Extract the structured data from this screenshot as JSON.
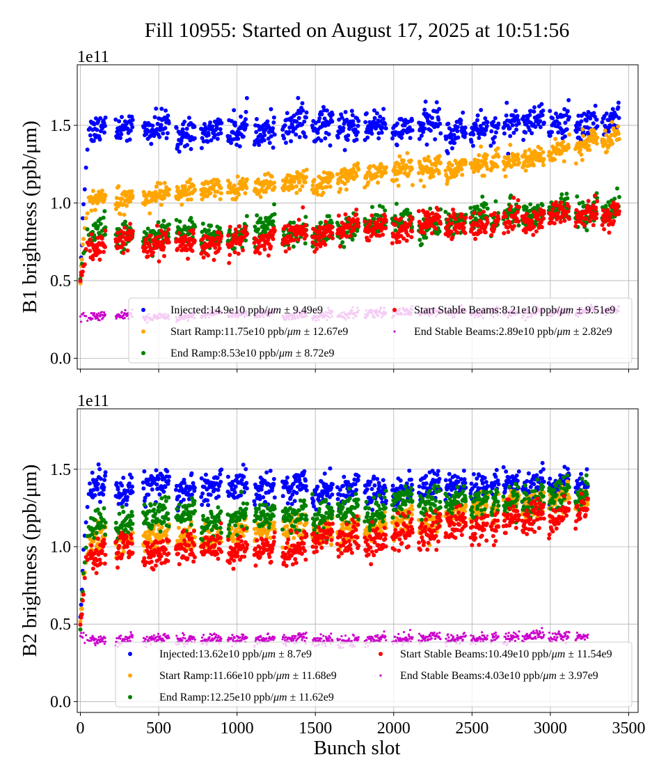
{
  "chart_data": {
    "type": "scatter",
    "title": "Fill 10955: Started on August 17, 2025 at 10:51:56",
    "xlabel": "Bunch slot",
    "xlim": [
      -20,
      3560
    ],
    "xticks": [
      0,
      500,
      1000,
      1500,
      2000,
      2500,
      3000,
      3500
    ],
    "grid": true,
    "bunch_trains": [
      [
        60,
        160
      ],
      [
        225,
        335
      ],
      [
        400,
        565
      ],
      [
        610,
        730
      ],
      [
        770,
        900
      ],
      [
        940,
        1065
      ],
      [
        1110,
        1240
      ],
      [
        1290,
        1445
      ],
      [
        1480,
        1610
      ],
      [
        1640,
        1775
      ],
      [
        1815,
        1950
      ],
      [
        1990,
        2120
      ],
      [
        2160,
        2300
      ],
      [
        2330,
        2460
      ],
      [
        2490,
        2600
      ],
      [
        2620,
        2670
      ],
      [
        2700,
        2800
      ],
      [
        2820,
        2960
      ],
      [
        2990,
        3120
      ],
      [
        3160,
        3300
      ],
      [
        3330,
        3440
      ]
    ],
    "panels": [
      {
        "ylabel": "B1 brightness (ppb/μm)",
        "offset_text": "1e11",
        "ylim": [
          -0.07,
          1.89
        ],
        "yticks": [
          "0.0",
          "0.5",
          "1.0",
          "1.5"
        ],
        "x_end": 3440,
        "legend_placement": "lower-right",
        "series": [
          {
            "name": "Injected",
            "mean": "14.9e10",
            "err": "9.49e9",
            "color": "#0000ff",
            "trend": [
              [
                0,
                1.46
              ],
              [
                1000,
                1.48
              ],
              [
                2000,
                1.48
              ],
              [
                3440,
                1.5
              ]
            ],
            "spread": 0.07
          },
          {
            "name": "Start Ramp",
            "mean": "11.75e10",
            "err": "12.67e9",
            "color": "#ffa500",
            "trend": [
              [
                0,
                1.02
              ],
              [
                1000,
                1.08
              ],
              [
                2000,
                1.2
              ],
              [
                3000,
                1.3
              ],
              [
                3440,
                1.47
              ]
            ],
            "spread": 0.05
          },
          {
            "name": "End Ramp",
            "mean": "8.53e10",
            "err": "8.72e9",
            "color": "#008000",
            "trend": [
              [
                0,
                0.8
              ],
              [
                1000,
                0.8
              ],
              [
                2000,
                0.88
              ],
              [
                3440,
                0.95
              ]
            ],
            "spread": 0.06
          },
          {
            "name": "Start Stable Beams",
            "mean": "8.21e10",
            "err": "9.51e9",
            "color": "#ff0000",
            "trend": [
              [
                0,
                0.73
              ],
              [
                1000,
                0.76
              ],
              [
                2000,
                0.85
              ],
              [
                3440,
                0.93
              ]
            ],
            "spread": 0.06
          },
          {
            "name": "End Stable Beams",
            "mean": "2.89e10",
            "err": "2.82e9",
            "color": "#cc00cc",
            "trend": [
              [
                0,
                0.27
              ],
              [
                1000,
                0.28
              ],
              [
                2000,
                0.29
              ],
              [
                3440,
                0.31
              ]
            ],
            "spread": 0.02
          }
        ]
      },
      {
        "ylabel": "B2 brightness (ppb/μm)",
        "offset_text": "1e11",
        "ylim": [
          -0.07,
          1.89
        ],
        "yticks": [
          "0.0",
          "0.5",
          "1.0",
          "1.5"
        ],
        "x_end": 3240,
        "legend_placement": "lower-right",
        "series": [
          {
            "name": "Injected",
            "mean": "13.62e10",
            "err": "8.7e9",
            "color": "#0000ff",
            "trend": [
              [
                0,
                1.38
              ],
              [
                1000,
                1.37
              ],
              [
                2000,
                1.38
              ],
              [
                3240,
                1.42
              ]
            ],
            "spread": 0.07
          },
          {
            "name": "Start Ramp",
            "mean": "11.66e10",
            "err": "11.68e9",
            "color": "#ffa500",
            "trend": [
              [
                0,
                1.03
              ],
              [
                1000,
                1.08
              ],
              [
                2000,
                1.15
              ],
              [
                3240,
                1.3
              ]
            ],
            "spread": 0.06
          },
          {
            "name": "End Ramp",
            "mean": "12.25e10",
            "err": "11.62e9",
            "color": "#008000",
            "trend": [
              [
                0,
                1.15
              ],
              [
                1000,
                1.18
              ],
              [
                2000,
                1.25
              ],
              [
                3240,
                1.35
              ]
            ],
            "spread": 0.07
          },
          {
            "name": "Start Stable Beams",
            "mean": "10.49e10",
            "err": "11.54e9",
            "color": "#ff0000",
            "trend": [
              [
                0,
                0.98
              ],
              [
                1000,
                0.98
              ],
              [
                2000,
                1.08
              ],
              [
                3240,
                1.22
              ]
            ],
            "spread": 0.07
          },
          {
            "name": "End Stable Beams",
            "mean": "4.03e10",
            "err": "3.97e9",
            "color": "#cc00cc",
            "trend": [
              [
                0,
                0.41
              ],
              [
                1000,
                0.39
              ],
              [
                2000,
                0.4
              ],
              [
                3240,
                0.42
              ]
            ],
            "spread": 0.025
          }
        ]
      }
    ],
    "unit": "ppb/",
    "unit_italic": "μm",
    "pm": "±"
  }
}
